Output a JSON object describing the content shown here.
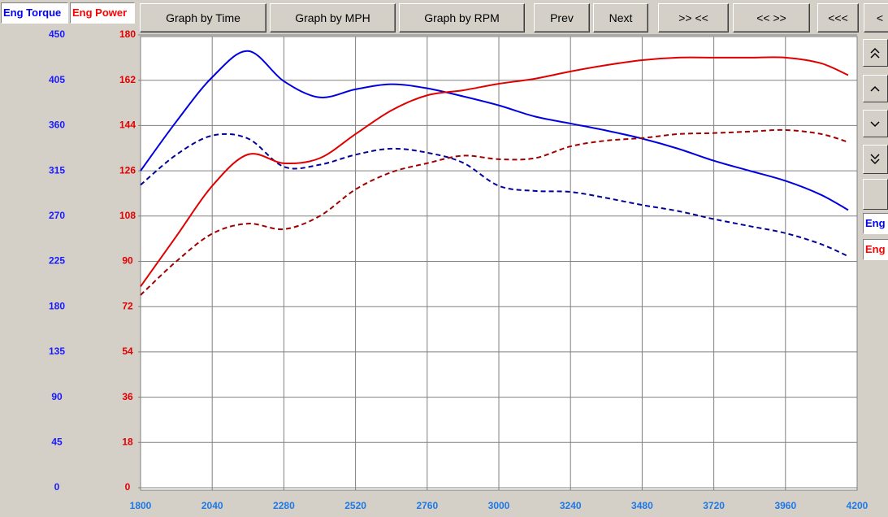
{
  "toolbar": {
    "legend_labels": [
      {
        "text": "Eng Torque",
        "color": "#0000ff"
      },
      {
        "text": "Eng Power",
        "color": "#ff0000"
      }
    ],
    "buttons": [
      "Graph by Time",
      "Graph by MPH",
      "Graph by RPM",
      "Prev",
      "Next",
      ">> <<",
      "<< >>",
      "<<<",
      "<"
    ]
  },
  "side_labels": [
    {
      "text": "Eng",
      "color": "#0000ff"
    },
    {
      "text": "Eng",
      "color": "#ff0000"
    }
  ],
  "chart_data": {
    "type": "line",
    "x": [
      1800,
      1920,
      2040,
      2160,
      2280,
      2400,
      2520,
      2640,
      2760,
      2880,
      3000,
      3120,
      3240,
      3360,
      3480,
      3600,
      3720,
      3840,
      3960,
      4080,
      4170
    ],
    "xlim": [
      1800,
      4200
    ],
    "xticks": [
      1800,
      2040,
      2280,
      2520,
      2760,
      3000,
      3240,
      3480,
      3720,
      3960,
      4200
    ],
    "ylim": [
      0,
      450
    ],
    "yticks": [
      0,
      45,
      90,
      135,
      180,
      225,
      270,
      315,
      360,
      405,
      450
    ],
    "y2lim": [
      0,
      180
    ],
    "y2ticks": [
      0,
      18,
      36,
      54,
      72,
      90,
      108,
      126,
      144,
      162,
      180
    ],
    "grid": true,
    "series": [
      {
        "color": "#0000e0",
        "dashed": false,
        "axis": "y",
        "values": [
          315,
          364,
          408,
          434,
          404,
          388,
          396,
          401,
          397,
          389,
          380,
          369,
          362,
          355,
          347,
          337,
          325,
          315,
          305,
          291,
          276
        ]
      },
      {
        "color": "#00009a",
        "dashed": true,
        "axis": "y",
        "values": [
          301,
          331,
          350,
          347,
          319,
          321,
          331,
          337,
          333,
          323,
          300,
          295,
          294,
          288,
          281,
          275,
          267,
          260,
          253,
          242,
          230
        ]
      },
      {
        "color": "#e00000",
        "dashed": false,
        "axis": "y2",
        "values": [
          80,
          100,
          120,
          132.5,
          129,
          131,
          140.6,
          150,
          156,
          158,
          160.6,
          162.6,
          165.5,
          168,
          170,
          171,
          171,
          171,
          171,
          168.7,
          164
        ]
      },
      {
        "color": "#a00000",
        "dashed": true,
        "axis": "y2",
        "values": [
          76.6,
          90,
          101,
          105,
          102.8,
          108,
          118.6,
          125.4,
          129,
          132,
          130.6,
          131,
          135.7,
          138,
          139,
          140.6,
          141,
          141.6,
          142.2,
          140.6,
          137.4
        ]
      }
    ]
  }
}
